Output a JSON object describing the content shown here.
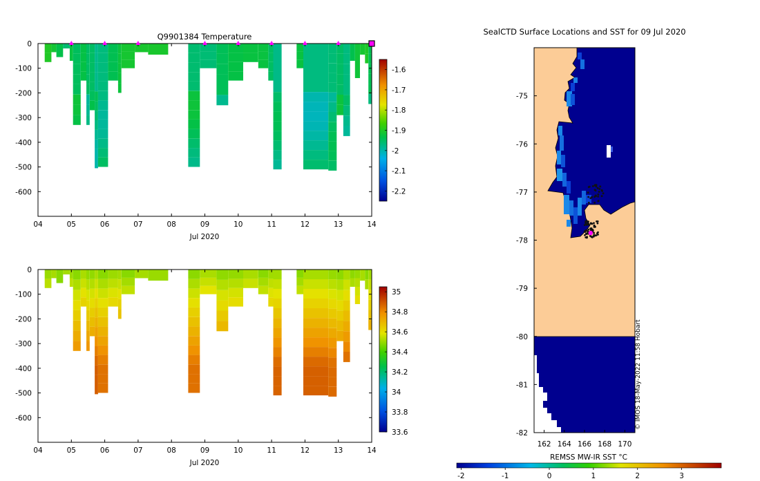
{
  "colors": {
    "land": "#fccc97",
    "ocean": "#00008f",
    "ice_edge_blue": "#0f6cd9",
    "marker": "#ff00ff",
    "frame": "#000000"
  },
  "chart_data": [
    {
      "id": "temperature",
      "type": "heatmap",
      "title": "Q9901384  Temperature",
      "xlabel": "Jul 2020",
      "ylabel": "",
      "x_ticks": [
        "04",
        "05",
        "06",
        "07",
        "08",
        "09",
        "10",
        "11",
        "12",
        "13",
        "14"
      ],
      "xlim": [
        4,
        14
      ],
      "y_ticks": [
        0,
        -100,
        -200,
        -300,
        -400,
        -500,
        -600
      ],
      "ylim": [
        -700,
        0
      ],
      "colorbar": {
        "ticks": [
          -1.6,
          -1.7,
          -1.8,
          -1.9,
          -2,
          -2.1,
          -2.2
        ],
        "tick_labels": [
          "-1.6",
          "-1.7",
          "-1.8",
          "-1.9",
          "-2",
          "-2.1",
          "-2.2"
        ],
        "range": [
          -2.25,
          -1.55
        ]
      },
      "profile_markers_day": [
        5,
        6,
        7,
        9,
        10,
        11,
        12,
        13,
        14
      ],
      "profiles": [
        {
          "x0": 4.2,
          "x1": 4.4,
          "depth": 75,
          "value": -1.91
        },
        {
          "x0": 4.4,
          "x1": 4.55,
          "depth": 35,
          "value": -1.92
        },
        {
          "x0": 4.55,
          "x1": 4.75,
          "depth": 55,
          "value": -1.93
        },
        {
          "x0": 4.75,
          "x1": 4.95,
          "depth": 20,
          "value": -1.95
        },
        {
          "x0": 4.95,
          "x1": 5.05,
          "depth": 70,
          "value": -1.92
        },
        {
          "x0": 5.05,
          "x1": 5.28,
          "depth": 330,
          "value": -1.95
        },
        {
          "x0": 5.28,
          "x1": 5.45,
          "depth": 150,
          "value": -1.94
        },
        {
          "x0": 5.45,
          "x1": 5.55,
          "depth": 330,
          "value": -1.96
        },
        {
          "x0": 5.55,
          "x1": 5.7,
          "depth": 270,
          "value": -1.95
        },
        {
          "x0": 5.7,
          "x1": 5.8,
          "depth": 505,
          "value": -1.97
        },
        {
          "x0": 5.8,
          "x1": 6.1,
          "depth": 500,
          "value": -1.96
        },
        {
          "x0": 6.1,
          "x1": 6.4,
          "depth": 150,
          "value": -1.94
        },
        {
          "x0": 6.4,
          "x1": 6.5,
          "depth": 200,
          "value": -1.93
        },
        {
          "x0": 6.5,
          "x1": 6.9,
          "depth": 100,
          "value": -1.92
        },
        {
          "x0": 6.9,
          "x1": 7.3,
          "depth": 35,
          "value": -1.91
        },
        {
          "x0": 7.3,
          "x1": 7.9,
          "depth": 45,
          "value": -1.9
        },
        {
          "x0": 8.5,
          "x1": 8.85,
          "depth": 500,
          "value": -1.95
        },
        {
          "x0": 8.85,
          "x1": 9.35,
          "depth": 100,
          "value": -1.96
        },
        {
          "x0": 9.35,
          "x1": 9.7,
          "depth": 250,
          "value": -1.95
        },
        {
          "x0": 9.7,
          "x1": 10.15,
          "depth": 150,
          "value": -1.94
        },
        {
          "x0": 10.15,
          "x1": 10.6,
          "depth": 75,
          "value": -1.93
        },
        {
          "x0": 10.6,
          "x1": 10.9,
          "depth": 100,
          "value": -1.92
        },
        {
          "x0": 10.9,
          "x1": 11.05,
          "depth": 150,
          "value": -1.94
        },
        {
          "x0": 11.05,
          "x1": 11.3,
          "depth": 510,
          "value": -1.97
        },
        {
          "x0": 11.75,
          "x1": 11.95,
          "depth": 100,
          "value": -1.93
        },
        {
          "x0": 11.95,
          "x1": 12.7,
          "depth": 510,
          "value": -1.98
        },
        {
          "x0": 12.7,
          "x1": 12.95,
          "depth": 515,
          "value": -1.97
        },
        {
          "x0": 12.95,
          "x1": 13.15,
          "depth": 290,
          "value": -1.95
        },
        {
          "x0": 13.15,
          "x1": 13.35,
          "depth": 375,
          "value": -1.96
        },
        {
          "x0": 13.35,
          "x1": 13.5,
          "depth": 70,
          "value": -1.93
        },
        {
          "x0": 13.5,
          "x1": 13.65,
          "depth": 140,
          "value": -1.92
        },
        {
          "x0": 13.65,
          "x1": 13.8,
          "depth": 45,
          "value": -1.92
        },
        {
          "x0": 13.8,
          "x1": 13.9,
          "depth": 80,
          "value": -1.91
        },
        {
          "x0": 13.9,
          "x1": 14.0,
          "depth": 245,
          "value": -1.94
        }
      ]
    },
    {
      "id": "salinity",
      "type": "heatmap",
      "title": "",
      "xlabel": "Jul 2020",
      "ylabel": "",
      "x_ticks": [
        "04",
        "05",
        "06",
        "07",
        "08",
        "09",
        "10",
        "11",
        "12",
        "13",
        "14"
      ],
      "xlim": [
        4,
        14
      ],
      "y_ticks": [
        0,
        -100,
        -200,
        -300,
        -400,
        -500,
        -600
      ],
      "ylim": [
        -700,
        0
      ],
      "colorbar": {
        "ticks": [
          35,
          34.8,
          34.6,
          34.4,
          34.2,
          34,
          33.8,
          33.6
        ],
        "tick_labels": [
          "35",
          "34.8",
          "34.6",
          "34.4",
          "34.2",
          "34",
          "33.8",
          "33.6"
        ],
        "range": [
          33.6,
          35.05
        ]
      },
      "surface_value": 34.5,
      "deep_value": 34.86
    },
    {
      "id": "sst_map",
      "type": "heatmap",
      "title": "SealCTD Surface Locations and SST for 09 Jul 2020",
      "xlabel": "",
      "ylabel": "",
      "x_ticks": [
        162,
        164,
        166,
        168,
        170
      ],
      "xlim": [
        161,
        171
      ],
      "y_ticks": [
        -75,
        -76,
        -77,
        -78,
        -79,
        -80,
        -81,
        -82
      ],
      "ylim": [
        -82,
        -74
      ],
      "colorbar": {
        "label": "REMSS MW-IR SST °C",
        "ticks": [
          -2,
          -1,
          0,
          1,
          2,
          3
        ],
        "tick_labels": [
          "-2",
          "-1",
          "0",
          "1",
          "2",
          "3"
        ],
        "range": [
          -2.1,
          3.9
        ]
      },
      "sst_open_ocean": -2,
      "credit": "© IMOS 18-May-2022 11:58 Hobart",
      "current_position": {
        "lon": 166.6,
        "lat": -77.85
      }
    }
  ]
}
